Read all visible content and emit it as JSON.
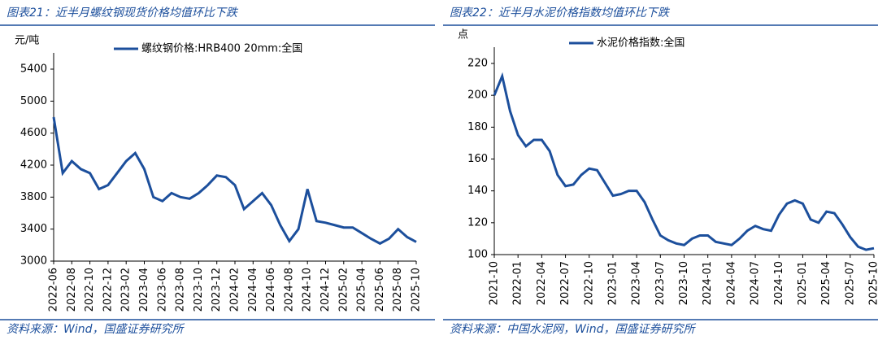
{
  "chart_data": [
    {
      "type": "line",
      "title": "图表21：近半月螺纹钢现货价格均值环比下跌",
      "source": "资料来源：Wind，国盛证券研究所",
      "y_unit": "元/吨",
      "x": [
        "2022-06",
        "2022-07",
        "2022-08",
        "2022-09",
        "2022-10",
        "2022-11",
        "2022-12",
        "2023-01",
        "2023-02",
        "2023-03",
        "2023-04",
        "2023-05",
        "2023-06",
        "2023-07",
        "2023-08",
        "2023-09",
        "2023-10",
        "2023-11",
        "2023-12",
        "2024-01",
        "2024-02",
        "2024-03",
        "2024-04",
        "2024-05",
        "2024-06",
        "2024-07",
        "2024-08",
        "2024-09",
        "2024-10",
        "2024-11",
        "2024-12",
        "2025-01",
        "2025-02",
        "2025-03",
        "2025-04",
        "2025-05",
        "2025-06",
        "2025-07",
        "2025-08",
        "2025-09",
        "2025-10"
      ],
      "xtick_step": 2,
      "series": [
        {
          "name": "螺纹钢价格:HRB400 20mm:全国",
          "color": "#1c4f9c",
          "values": [
            4800,
            4100,
            4250,
            4150,
            4100,
            3900,
            3950,
            4100,
            4250,
            4350,
            4150,
            3800,
            3750,
            3850,
            3800,
            3780,
            3850,
            3950,
            4070,
            4050,
            3950,
            3650,
            3750,
            3850,
            3700,
            3450,
            3250,
            3400,
            3900,
            3500,
            3480,
            3450,
            3420,
            3420,
            3350,
            3280,
            3220,
            3280,
            3400,
            3300,
            3240
          ]
        }
      ],
      "ylim": [
        3000,
        5400
      ],
      "yticks": [
        3000,
        3400,
        3800,
        4200,
        4600,
        5000,
        5400
      ]
    },
    {
      "type": "line",
      "title": "图表22：近半月水泥价格指数均值环比下跌",
      "source": "资料来源：中国水泥网，Wind，国盛证券研究所",
      "y_unit": "点",
      "x": [
        "2021-10",
        "2021-11",
        "2021-12",
        "2022-01",
        "2022-02",
        "2022-03",
        "2022-04",
        "2022-05",
        "2022-06",
        "2022-07",
        "2022-08",
        "2022-09",
        "2022-10",
        "2022-11",
        "2022-12",
        "2023-01",
        "2023-02",
        "2023-03",
        "2023-04",
        "2023-05",
        "2023-06",
        "2023-07",
        "2023-08",
        "2023-09",
        "2023-10",
        "2023-11",
        "2023-12",
        "2024-01",
        "2024-02",
        "2024-03",
        "2024-04",
        "2024-05",
        "2024-06",
        "2024-07",
        "2024-08",
        "2024-09",
        "2024-10",
        "2024-11",
        "2024-12",
        "2025-01",
        "2025-02",
        "2025-03",
        "2025-04",
        "2025-05",
        "2025-06",
        "2025-07",
        "2025-08",
        "2025-09",
        "2025-10"
      ],
      "xtick_step": 3,
      "series": [
        {
          "name": "水泥价格指数:全国",
          "color": "#1c4f9c",
          "values": [
            200,
            212,
            190,
            175,
            168,
            172,
            172,
            165,
            150,
            143,
            144,
            150,
            154,
            153,
            145,
            137,
            138,
            140,
            140,
            133,
            122,
            112,
            109,
            107,
            106,
            110,
            112,
            112,
            108,
            107,
            106,
            110,
            115,
            118,
            116,
            115,
            125,
            132,
            134,
            132,
            122,
            120,
            127,
            126,
            119,
            111,
            105,
            103,
            104
          ]
        }
      ],
      "ylim": [
        100,
        220
      ],
      "yticks": [
        100,
        120,
        140,
        160,
        180,
        200,
        220
      ]
    }
  ]
}
